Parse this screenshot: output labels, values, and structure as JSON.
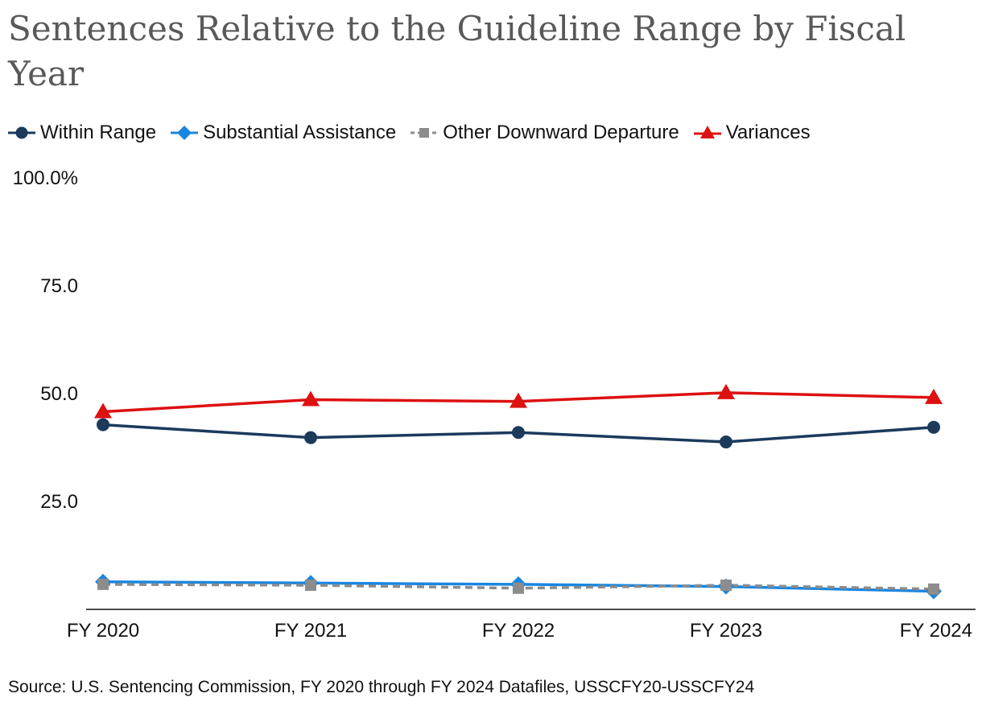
{
  "chart_data": {
    "type": "line",
    "title": "Sentences Relative to the Guideline Range by Fiscal Year",
    "categories": [
      "FY 2020",
      "FY 2021",
      "FY 2022",
      "FY 2023",
      "FY 2024"
    ],
    "ylim": [
      0,
      100
    ],
    "yticks": [
      {
        "value": 100,
        "label": "100.0%"
      },
      {
        "value": 75,
        "label": "75.0"
      },
      {
        "value": 50,
        "label": "50.0"
      },
      {
        "value": 25,
        "label": "25.0"
      }
    ],
    "grid": false,
    "legend_position": "top-left",
    "series": [
      {
        "name": "Within Range",
        "color": "#1b3a5c",
        "marker": "circle",
        "dash": "solid",
        "values": [
          42.8,
          39.8,
          41.0,
          38.8,
          42.2
        ]
      },
      {
        "name": "Substantial Assistance",
        "color": "#1a86e0",
        "marker": "diamond",
        "dash": "solid",
        "values": [
          6.4,
          6.1,
          5.8,
          5.3,
          4.2
        ]
      },
      {
        "name": "Other Downward Departure",
        "color": "#8c8c8c",
        "marker": "square",
        "dash": "dashed",
        "values": [
          5.8,
          5.6,
          4.9,
          5.6,
          4.7
        ]
      },
      {
        "name": "Variances",
        "color": "#dd1111",
        "marker": "triangle",
        "dash": "solid",
        "values": [
          45.8,
          48.6,
          48.2,
          50.2,
          49.1
        ]
      }
    ],
    "source": "Source: U.S. Sentencing Commission, FY 2020 through FY 2024 Datafiles, USSCFY20-USSCFY24"
  }
}
